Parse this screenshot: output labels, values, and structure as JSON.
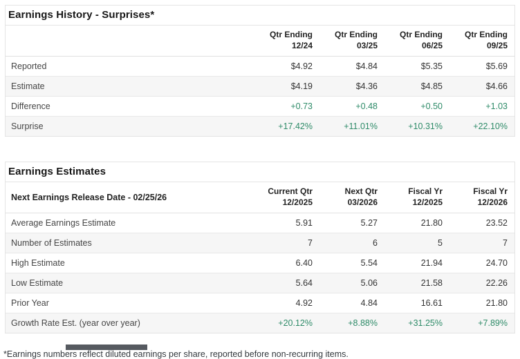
{
  "colors": {
    "positive": "#2e8b68"
  },
  "surprises": {
    "title": "Earnings History - Surprises*",
    "col_headers": [
      {
        "line1": "Qtr Ending",
        "line2": "12/24"
      },
      {
        "line1": "Qtr Ending",
        "line2": "03/25"
      },
      {
        "line1": "Qtr Ending",
        "line2": "06/25"
      },
      {
        "line1": "Qtr Ending",
        "line2": "09/25"
      }
    ],
    "rows": [
      {
        "label": "Reported",
        "is_positive": false,
        "values": [
          "$4.92",
          "$4.84",
          "$5.35",
          "$5.69"
        ]
      },
      {
        "label": "Estimate",
        "is_positive": false,
        "values": [
          "$4.19",
          "$4.36",
          "$4.85",
          "$4.66"
        ]
      },
      {
        "label": "Difference",
        "is_positive": true,
        "values": [
          "+0.73",
          "+0.48",
          "+0.50",
          "+1.03"
        ]
      },
      {
        "label": "Surprise",
        "is_positive": true,
        "values": [
          "+17.42%",
          "+11.01%",
          "+10.31%",
          "+22.10%"
        ]
      }
    ]
  },
  "estimates": {
    "title": "Earnings Estimates",
    "release_date_label": "Next Earnings Release Date - 02/25/26",
    "col_headers": [
      {
        "line1": "Current Qtr",
        "line2": "12/2025"
      },
      {
        "line1": "Next Qtr",
        "line2": "03/2026"
      },
      {
        "line1": "Fiscal Yr",
        "line2": "12/2025"
      },
      {
        "line1": "Fiscal Yr",
        "line2": "12/2026"
      }
    ],
    "rows": [
      {
        "label": "Average Earnings Estimate",
        "is_positive": false,
        "values": [
          "5.91",
          "5.27",
          "21.80",
          "23.52"
        ]
      },
      {
        "label": "Number of Estimates",
        "is_positive": false,
        "values": [
          "7",
          "6",
          "5",
          "7"
        ]
      },
      {
        "label": "High Estimate",
        "is_positive": false,
        "values": [
          "6.40",
          "5.54",
          "21.94",
          "24.70"
        ]
      },
      {
        "label": "Low Estimate",
        "is_positive": false,
        "values": [
          "5.64",
          "5.06",
          "21.58",
          "22.26"
        ]
      },
      {
        "label": "Prior Year",
        "is_positive": false,
        "values": [
          "4.92",
          "4.84",
          "16.61",
          "21.80"
        ]
      },
      {
        "label": "Growth Rate Est. (year over year)",
        "is_positive": true,
        "values": [
          "+20.12%",
          "+8.88%",
          "+31.25%",
          "+7.89%"
        ]
      }
    ]
  },
  "footnote": "*Earnings numbers reflect diluted earnings per share, reported before non-recurring items."
}
